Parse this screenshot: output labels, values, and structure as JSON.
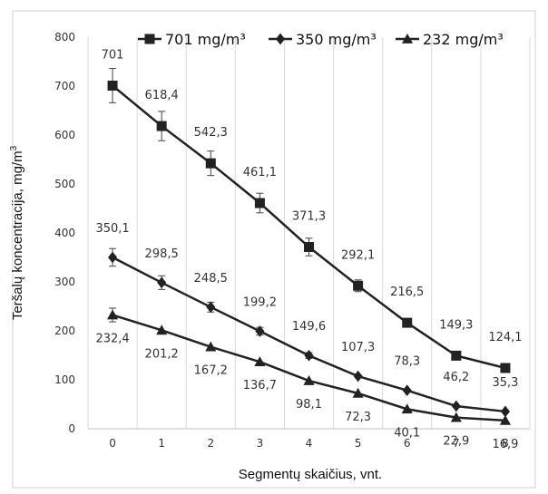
{
  "chart_data": {
    "type": "line",
    "x": [
      0,
      1,
      2,
      3,
      4,
      5,
      6,
      7,
      8
    ],
    "xlabel": "Segmentų skaičius, vnt.",
    "ylabel": "Teršalų koncentracija, mg/m",
    "ylabel_sup": "3",
    "xlim": [
      -0.5,
      8.5
    ],
    "ylim": [
      0,
      800
    ],
    "yticks": [
      0,
      100,
      200,
      300,
      400,
      500,
      600,
      700,
      800
    ],
    "grid": "vertical",
    "legend_position": "top",
    "series": [
      {
        "name": "701 mg/m³",
        "marker": "square",
        "values": [
          701,
          618.4,
          542.3,
          461.1,
          371.3,
          292.1,
          216.5,
          149.3,
          124.1
        ],
        "labels": [
          "701",
          "618,4",
          "542,3",
          "461,1",
          "371,3",
          "292,1",
          "216,5",
          "149,3",
          "124,1"
        ],
        "errors": [
          35,
          30,
          25,
          20,
          18,
          12,
          0,
          0,
          0
        ]
      },
      {
        "name": "350 mg/m³",
        "marker": "diamond",
        "values": [
          350.1,
          298.5,
          248.5,
          199.2,
          149.6,
          107.3,
          78.3,
          46.2,
          35.3
        ],
        "labels": [
          "350,1",
          "298,5",
          "248,5",
          "199,2",
          "149,6",
          "107,3",
          "78,3",
          "46,2",
          "35,3"
        ],
        "errors": [
          18,
          14,
          10,
          8,
          6,
          0,
          0,
          0,
          0
        ]
      },
      {
        "name": "232 mg/m³",
        "marker": "triangle",
        "values": [
          232.4,
          201.2,
          167.2,
          136.7,
          98.1,
          72.3,
          40.1,
          22.9,
          16.9
        ],
        "labels": [
          "232,4",
          "201,2",
          "167,2",
          "136,7",
          "98,1",
          "72,3",
          "40,1",
          "22,9",
          "16,9"
        ],
        "errors": [
          14,
          0,
          0,
          0,
          0,
          0,
          0,
          0,
          0
        ]
      }
    ]
  }
}
